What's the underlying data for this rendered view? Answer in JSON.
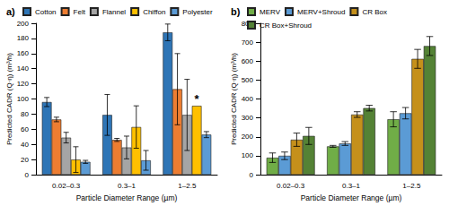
{
  "chart_data": [
    {
      "type": "bar",
      "title": "a)",
      "xlabel": "Particle Diameter Range (µm)",
      "ylabel": "Predicted CADR (Q·η) (m³/h)",
      "categories": [
        "0.02–0.3",
        "0.3–1",
        "1–2.5"
      ],
      "series": [
        {
          "name": "Cotton",
          "color": "#2e75b6",
          "values": [
            96,
            79,
            188
          ],
          "errors": [
            6,
            27,
            11
          ]
        },
        {
          "name": "Felt",
          "color": "#ed7d31",
          "values": [
            73,
            46,
            113
          ],
          "errors": [
            3,
            2,
            47
          ]
        },
        {
          "name": "Flannel",
          "color": "#a5a5a5",
          "values": [
            49,
            36,
            79
          ],
          "errors": [
            7,
            15,
            47
          ]
        },
        {
          "name": "Chiffon",
          "color": "#ffc000",
          "values": [
            20,
            63,
            91
          ],
          "errors": [
            17,
            28,
            null
          ]
        },
        {
          "name": "Polyester",
          "color": "#5b9bd5",
          "values": [
            17,
            19,
            53
          ],
          "errors": [
            2,
            13,
            4
          ]
        }
      ],
      "annotations": [
        {
          "text": "*",
          "series": "Chiffon",
          "category": "1–2.5"
        }
      ],
      "ylim": [
        0,
        200
      ],
      "yticks": [
        0,
        20,
        40,
        60,
        80,
        100,
        120,
        140,
        160,
        180,
        200
      ],
      "grid": false,
      "legend": "top"
    },
    {
      "type": "bar",
      "title": "b)",
      "xlabel": "Particle Diameter Range (µm)",
      "ylabel": "Predicted CADR (Q·η) (m³/h)",
      "categories": [
        "0.02–0.3",
        "0.3–1",
        "1–2.5"
      ],
      "series": [
        {
          "name": "MERV",
          "color": "#70ad47",
          "values": [
            90,
            150,
            293
          ],
          "errors": [
            25,
            5,
            40
          ]
        },
        {
          "name": "MERV+Shroud",
          "color": "#5b9bd5",
          "values": [
            100,
            165,
            325
          ],
          "errors": [
            20,
            10,
            30
          ]
        },
        {
          "name": "CR Box",
          "color": "#c5901b",
          "values": [
            185,
            318,
            612
          ],
          "errors": [
            35,
            15,
            50
          ]
        },
        {
          "name": "CR Box+Shroud",
          "color": "#548235",
          "values": [
            205,
            352,
            680
          ],
          "errors": [
            45,
            15,
            50
          ]
        }
      ],
      "ylim": [
        0,
        800
      ],
      "yticks": [
        0,
        100,
        200,
        300,
        400,
        500,
        600,
        700,
        800
      ],
      "grid": false,
      "legend": "top"
    }
  ]
}
